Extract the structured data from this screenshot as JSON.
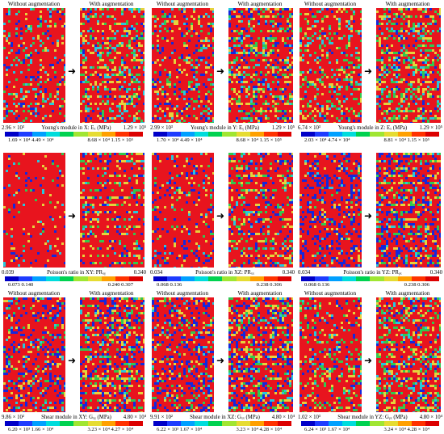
{
  "panels": [
    {
      "left": "Without augmentation",
      "right": "With augmentation",
      "seed": 11,
      "mix": [
        0.62,
        0.1,
        0.08,
        0.12,
        0.08
      ],
      "min": "2.96 × 10³",
      "label": "Young's module in X: Eₓ (MPa)",
      "max": "1.29 × 10⁵",
      "ticksL": "1.69 × 10⁴ 4.49 × 10⁴",
      "ticksR": "8.68 × 10⁴ 1.15 × 10⁵"
    },
    {
      "left": "Without augmentation",
      "right": "With augmentation",
      "seed": 23,
      "mix": [
        0.55,
        0.12,
        0.1,
        0.08,
        0.15
      ],
      "min": "2.99 × 10³",
      "label": "Young's module in Y: Eᵧ (MPa)",
      "max": "1.29 × 10⁵",
      "ticksL": "1.70 × 10⁴ 4.49 × 10⁴",
      "ticksR": "8.68 × 10⁴ 1.15 × 10⁵"
    },
    {
      "left": "Without augmentation",
      "right": "With augmentation",
      "seed": 37,
      "mix": [
        0.55,
        0.15,
        0.15,
        0.1,
        0.05
      ],
      "min": "6.74 × 10³",
      "label": "Young's module in Z: Eₓ (MPa)",
      "max": "1.29 × 10⁵",
      "ticksL": "2.03 × 10⁴ 4.74 × 10⁴",
      "ticksR": "8.81 × 10⁴ 1.15 × 10⁵"
    },
    {
      "left": "",
      "right": "",
      "seed": 41,
      "mix": [
        0.82,
        0.05,
        0.02,
        0.03,
        0.08
      ],
      "min": "0.039",
      "label": "Poisson's ratio in XY: PRₓᵧ",
      "max": "0.340",
      "ticksL": "0.073    0.140",
      "ticksR": "0.240    0.307"
    },
    {
      "left": "",
      "right": "",
      "seed": 53,
      "mix": [
        0.68,
        0.08,
        0.04,
        0.05,
        0.15
      ],
      "min": "0.034",
      "label": "Poisson's ratio in XZ: PRₓₓ",
      "max": "0.340",
      "ticksL": "0.068    0.136",
      "ticksR": "0.238    0.306"
    },
    {
      "left": "",
      "right": "",
      "seed": 67,
      "mix": [
        0.48,
        0.08,
        0.04,
        0.05,
        0.35
      ],
      "min": "0.034",
      "label": "Poisson's ratio in YZ: PRᵧₓ",
      "max": "0.340",
      "ticksL": "0.068    0.136",
      "ticksR": "0.238    0.306"
    },
    {
      "left": "Without augmentation",
      "right": "With augmentation",
      "seed": 71,
      "mix": [
        0.45,
        0.12,
        0.08,
        0.05,
        0.3
      ],
      "min": "9.86 × 10²",
      "label": "Shear module in XY: Gₓᵧ (MPa)",
      "max": "4.80 × 10⁴",
      "ticksL": "6.20 × 10³ 1.66 × 10⁴",
      "ticksR": "3.23 × 10⁴ 4.27 × 10⁴"
    },
    {
      "left": "Without augmentation",
      "right": "With augmentation",
      "seed": 83,
      "mix": [
        0.42,
        0.12,
        0.1,
        0.06,
        0.3
      ],
      "min": "9.91 × 10²",
      "label": "Shear module in XZ: Gₓₓ (MPa)",
      "max": "4.80 × 10⁴",
      "ticksL": "6.22 × 10³ 1.67 × 10⁴",
      "ticksR": "3.23 × 10⁴ 4.28 × 10⁴"
    },
    {
      "left": "Without augmentation",
      "right": "With augmentation",
      "seed": 97,
      "mix": [
        0.5,
        0.15,
        0.15,
        0.08,
        0.12
      ],
      "min": "1.02 × 10³",
      "label": "Shear module in YZ: Gᵧₓ (MPa)",
      "max": "4.80 × 10⁴",
      "ticksL": "6.24 × 10³ 1.67 × 10⁴",
      "ticksR": "3.24 × 10⁴ 4.28 × 10⁴"
    }
  ],
  "colormap": [
    "#0000c8",
    "#1e3cff",
    "#00a0ff",
    "#00dcdc",
    "#00d250",
    "#a0e632",
    "#e6dc32",
    "#ffa000",
    "#ff3200",
    "#dc0000"
  ],
  "palette": {
    "red": "#e8141e",
    "yellow": "#e6d23c",
    "green": "#32c850",
    "cyan": "#28c8dc",
    "blue": "#1428dc"
  },
  "arrow": "➜"
}
